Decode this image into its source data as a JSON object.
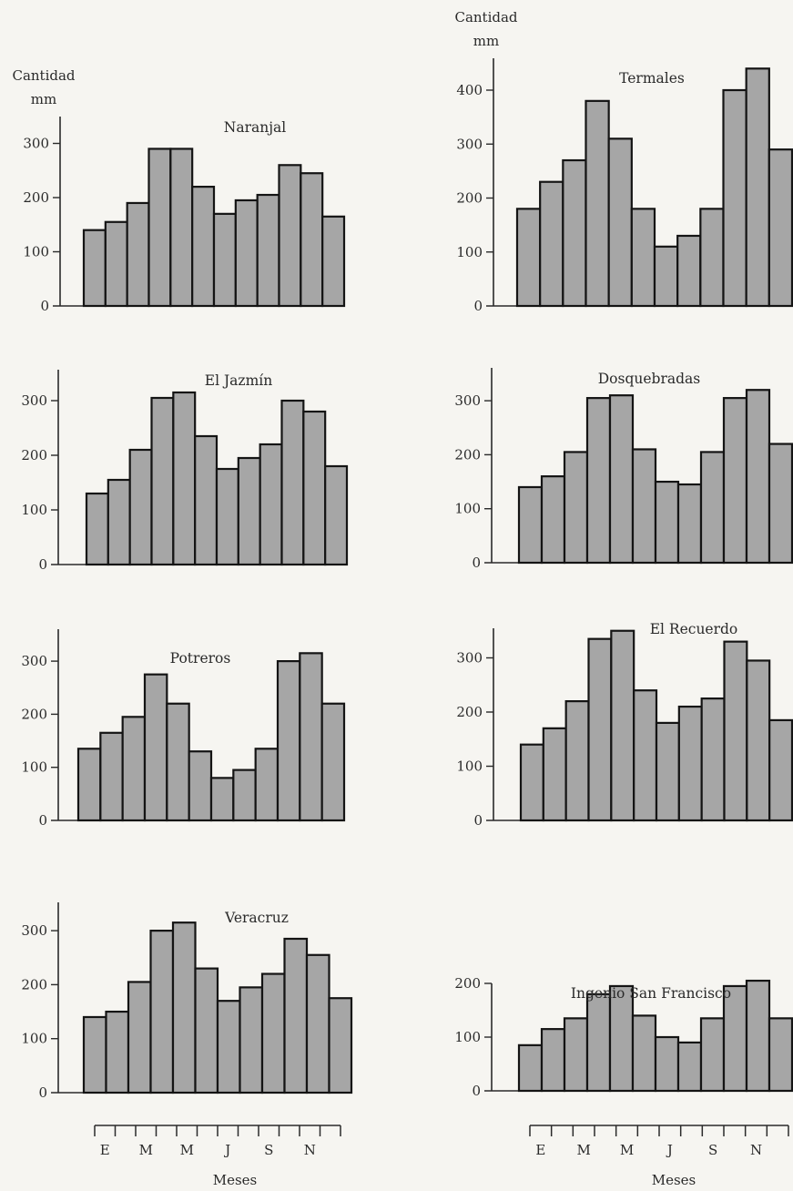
{
  "y_axis_title": {
    "line1": "Cantidad",
    "line2": "mm"
  },
  "x_axis_title": "Meses",
  "month_labels": [
    "E",
    "",
    "M",
    "",
    "M",
    "",
    "J",
    "",
    "S",
    "",
    "N",
    ""
  ],
  "colors": {
    "bar_fill": "#a6a6a6",
    "bar_stroke": "#141414",
    "axis": "#2a2a2a"
  },
  "chart_data": [
    {
      "type": "bar",
      "title": "Naranjal",
      "ylim": [
        0,
        300
      ],
      "yticks": [
        0,
        100,
        200,
        300
      ],
      "categories": [
        "1",
        "2",
        "3",
        "4",
        "5",
        "6",
        "7",
        "8",
        "9",
        "10",
        "11",
        "12"
      ],
      "values": [
        140,
        155,
        190,
        290,
        290,
        220,
        170,
        195,
        205,
        260,
        245,
        165
      ]
    },
    {
      "type": "bar",
      "title": "Termales",
      "ylim": [
        0,
        400
      ],
      "yticks": [
        0,
        100,
        200,
        300,
        400
      ],
      "categories": [
        "1",
        "2",
        "3",
        "4",
        "5",
        "6",
        "7",
        "8",
        "9",
        "10",
        "11",
        "12"
      ],
      "values": [
        180,
        230,
        270,
        380,
        310,
        180,
        110,
        130,
        180,
        400,
        440,
        290
      ]
    },
    {
      "type": "bar",
      "title": "El Jazmín",
      "ylim": [
        0,
        300
      ],
      "yticks": [
        0,
        100,
        200,
        300
      ],
      "categories": [
        "1",
        "2",
        "3",
        "4",
        "5",
        "6",
        "7",
        "8",
        "9",
        "10",
        "11",
        "12"
      ],
      "values": [
        130,
        155,
        210,
        305,
        315,
        235,
        175,
        195,
        220,
        300,
        280,
        180
      ]
    },
    {
      "type": "bar",
      "title": "Dosquebradas",
      "ylim": [
        0,
        300
      ],
      "yticks": [
        0,
        100,
        200,
        300
      ],
      "categories": [
        "1",
        "2",
        "3",
        "4",
        "5",
        "6",
        "7",
        "8",
        "9",
        "10",
        "11",
        "12"
      ],
      "values": [
        140,
        160,
        205,
        305,
        310,
        210,
        150,
        145,
        205,
        305,
        320,
        220
      ]
    },
    {
      "type": "bar",
      "title": "Potreros",
      "ylim": [
        0,
        300
      ],
      "yticks": [
        0,
        100,
        200,
        300
      ],
      "categories": [
        "1",
        "2",
        "3",
        "4",
        "5",
        "6",
        "7",
        "8",
        "9",
        "10",
        "11",
        "12"
      ],
      "values": [
        135,
        165,
        195,
        275,
        220,
        130,
        80,
        95,
        135,
        300,
        315,
        220
      ]
    },
    {
      "type": "bar",
      "title": "El Recuerdo",
      "ylim": [
        0,
        300
      ],
      "yticks": [
        0,
        100,
        200,
        300
      ],
      "categories": [
        "1",
        "2",
        "3",
        "4",
        "5",
        "6",
        "7",
        "8",
        "9",
        "10",
        "11",
        "12"
      ],
      "values": [
        140,
        170,
        220,
        335,
        350,
        240,
        180,
        210,
        225,
        330,
        295,
        185
      ]
    },
    {
      "type": "bar",
      "title": "Veracruz",
      "ylim": [
        0,
        300
      ],
      "yticks": [
        0,
        100,
        200,
        300
      ],
      "categories": [
        "1",
        "2",
        "3",
        "4",
        "5",
        "6",
        "7",
        "8",
        "9",
        "10",
        "11",
        "12"
      ],
      "values": [
        140,
        150,
        205,
        300,
        315,
        230,
        170,
        195,
        220,
        285,
        255,
        175
      ]
    },
    {
      "type": "bar",
      "title": "Ingenio San Francisco",
      "ylim": [
        0,
        200
      ],
      "yticks": [
        0,
        100,
        200
      ],
      "categories": [
        "1",
        "2",
        "3",
        "4",
        "5",
        "6",
        "7",
        "8",
        "9",
        "10",
        "11",
        "12"
      ],
      "values": [
        85,
        115,
        135,
        180,
        195,
        140,
        100,
        90,
        135,
        195,
        205,
        135
      ]
    }
  ]
}
